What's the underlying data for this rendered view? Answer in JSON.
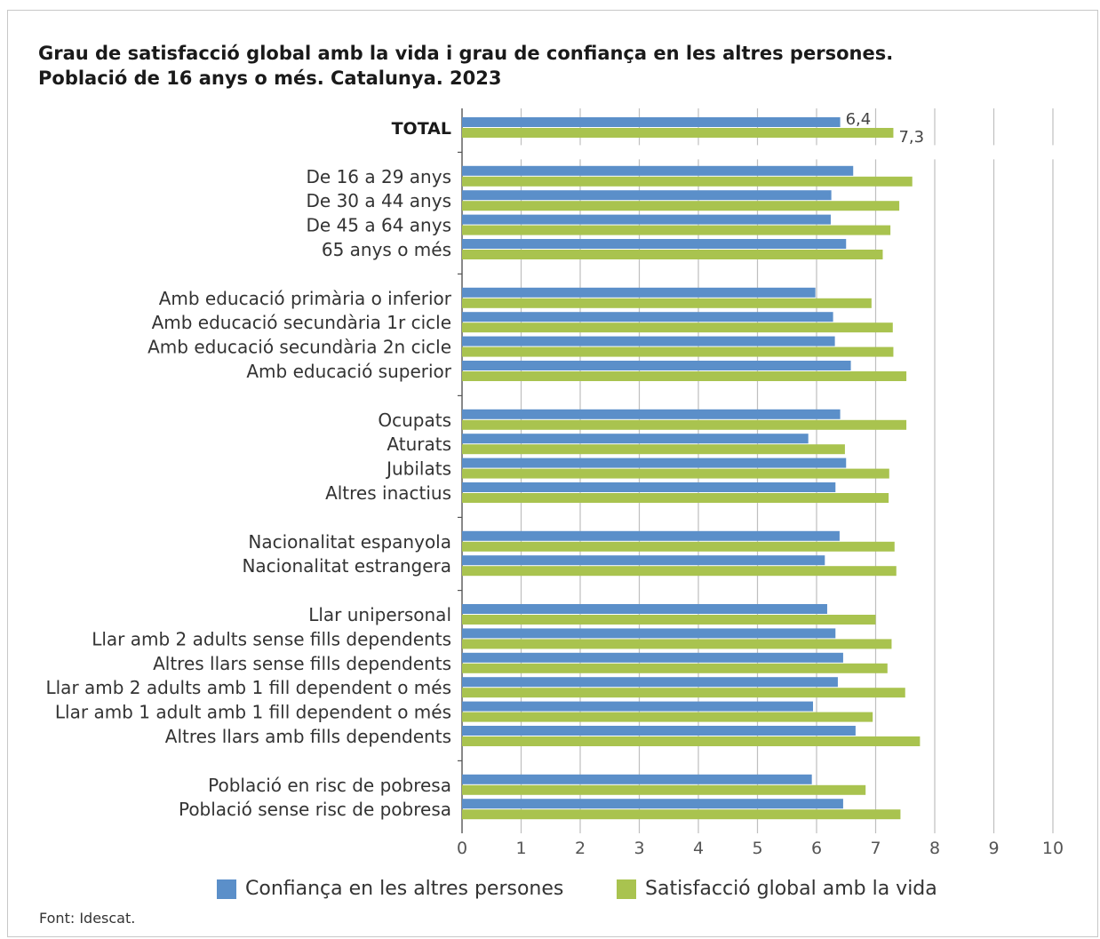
{
  "colors": {
    "confianca": "#5b8fc9",
    "satisfaccio": "#a9c34f",
    "grid": "#bfbfbf",
    "axis": "#555555"
  },
  "title_line1": "Grau de satisfacció global amb la vida i grau de confiança en les altres persones.",
  "title_line2": "Població de 16 anys o més. Catalunya. 2023",
  "source": "Font: Idescat.",
  "chart_data": {
    "type": "bar",
    "orientation": "horizontal",
    "title": "Grau de satisfacció global amb la vida i grau de confiança en les altres persones. Població de 16 anys o més. Catalunya. 2023",
    "xlim": [
      0,
      10
    ],
    "xticks": [
      "0",
      "1",
      "2",
      "3",
      "4",
      "5",
      "6",
      "7",
      "8",
      "9",
      "10"
    ],
    "grid": "vertical",
    "legend": "bottom",
    "series": [
      {
        "name": "Confiança en les altres persones",
        "color": "#5b8fc9"
      },
      {
        "name": "Satisfacció global amb la vida",
        "color": "#a9c34f"
      }
    ],
    "groups": [
      {
        "rows": [
          {
            "label": "TOTAL",
            "bold": true,
            "confianca": 6.4,
            "satisfaccio": 7.3,
            "confianca_label": "6,4",
            "satisfaccio_label": "7,3"
          }
        ]
      },
      {
        "rows": [
          {
            "label": "De 16 a 29 anys",
            "confianca": 6.62,
            "satisfaccio": 7.62
          },
          {
            "label": "De 30 a 44 anys",
            "confianca": 6.25,
            "satisfaccio": 7.4
          },
          {
            "label": "De 45 a 64 anys",
            "confianca": 6.24,
            "satisfaccio": 7.25
          },
          {
            "label": "65 anys o més",
            "confianca": 6.5,
            "satisfaccio": 7.12
          }
        ]
      },
      {
        "rows": [
          {
            "label": "Amb educació primària o inferior",
            "confianca": 5.98,
            "satisfaccio": 6.93
          },
          {
            "label": "Amb educació secundària 1r cicle",
            "confianca": 6.28,
            "satisfaccio": 7.29
          },
          {
            "label": "Amb educació secundària 2n cicle",
            "confianca": 6.31,
            "satisfaccio": 7.3
          },
          {
            "label": "Amb educació superior",
            "confianca": 6.58,
            "satisfaccio": 7.52
          }
        ]
      },
      {
        "rows": [
          {
            "label": "Ocupats",
            "confianca": 6.4,
            "satisfaccio": 7.52
          },
          {
            "label": "Aturats",
            "confianca": 5.86,
            "satisfaccio": 6.48
          },
          {
            "label": "Jubilats",
            "confianca": 6.5,
            "satisfaccio": 7.23
          },
          {
            "label": "Altres inactius",
            "confianca": 6.32,
            "satisfaccio": 7.22
          }
        ]
      },
      {
        "rows": [
          {
            "label": "Nacionalitat espanyola",
            "confianca": 6.39,
            "satisfaccio": 7.32
          },
          {
            "label": "Nacionalitat estrangera",
            "confianca": 6.14,
            "satisfaccio": 7.35
          }
        ]
      },
      {
        "rows": [
          {
            "label": "Llar unipersonal",
            "confianca": 6.18,
            "satisfaccio": 7.0
          },
          {
            "label": "Llar amb 2 adults sense fills dependents",
            "confianca": 6.32,
            "satisfaccio": 7.27
          },
          {
            "label": "Altres llars sense fills dependents",
            "confianca": 6.45,
            "satisfaccio": 7.2
          },
          {
            "label": "Llar amb 2 adults amb 1 fill dependent o més",
            "confianca": 6.36,
            "satisfaccio": 7.5
          },
          {
            "label": "Llar amb 1 adult amb 1 fill dependent o més",
            "confianca": 5.94,
            "satisfaccio": 6.95
          },
          {
            "label": "Altres llars amb fills dependents",
            "confianca": 6.66,
            "satisfaccio": 7.75
          }
        ]
      },
      {
        "rows": [
          {
            "label": "Població en risc de pobresa",
            "confianca": 5.92,
            "satisfaccio": 6.83
          },
          {
            "label": "Població sense risc de pobresa",
            "confianca": 6.45,
            "satisfaccio": 7.42
          }
        ]
      }
    ]
  }
}
